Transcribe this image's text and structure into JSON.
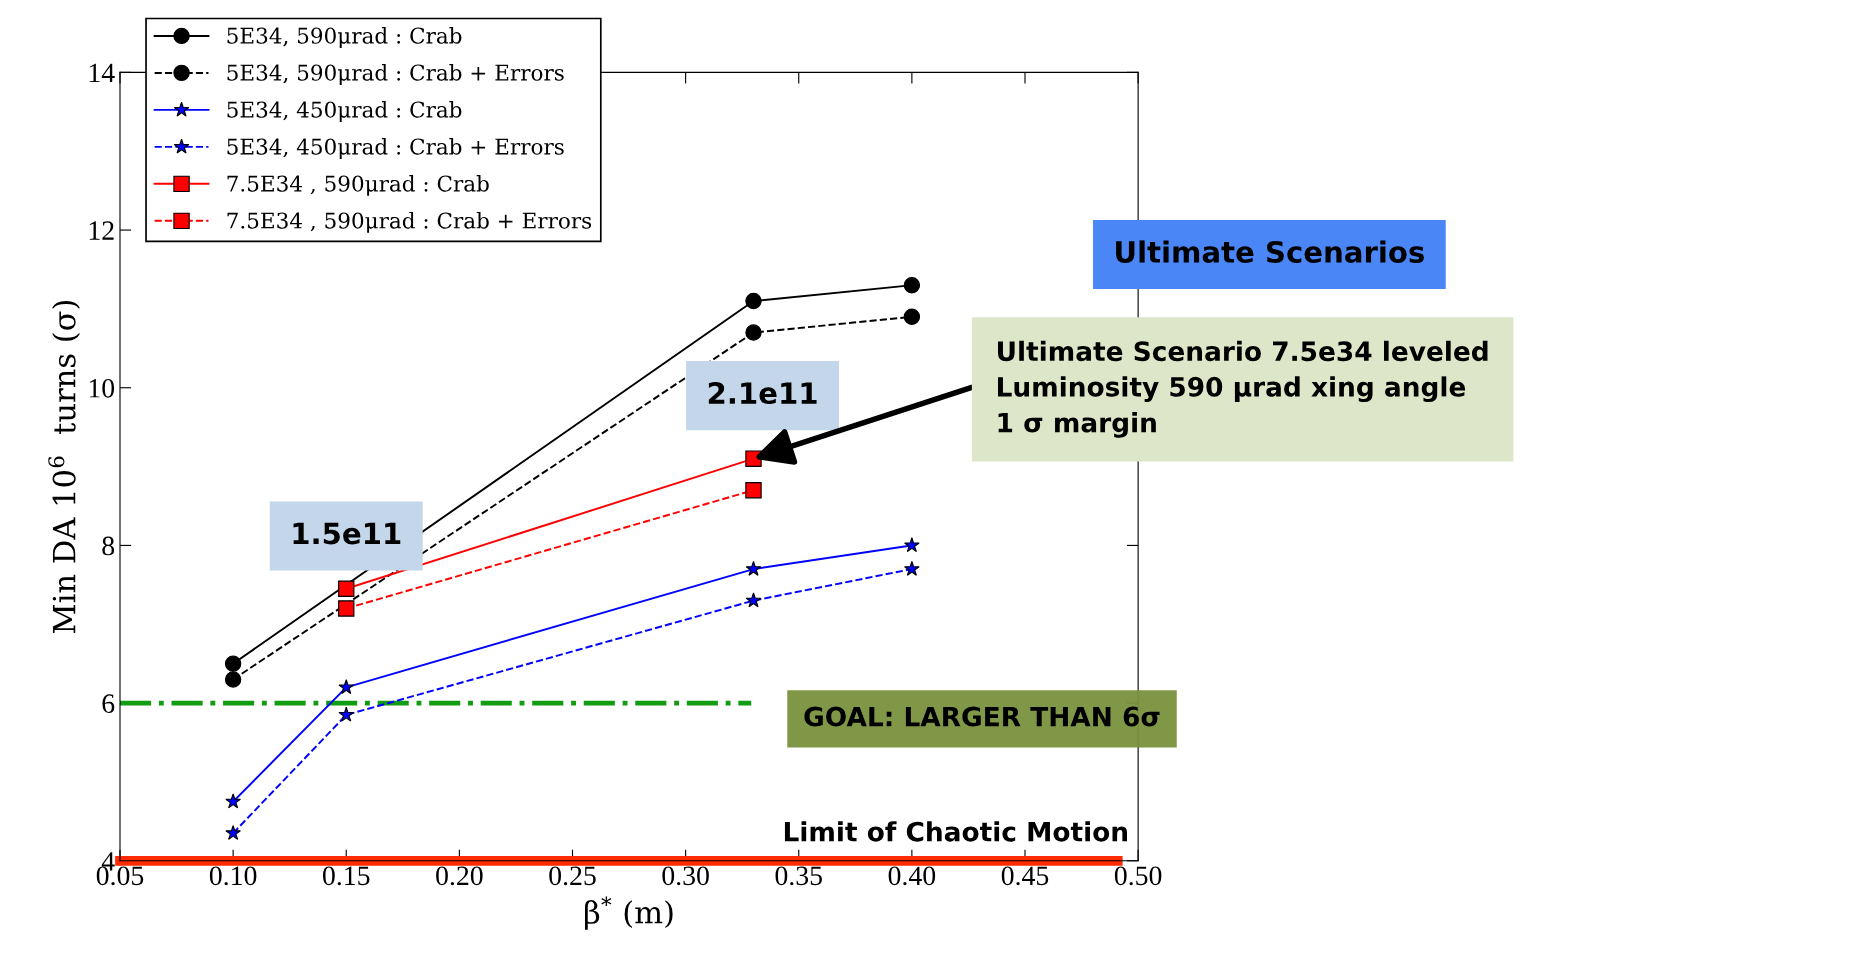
{
  "chart_data": {
    "type": "line",
    "xlabel": "β$^{*}$ (m)",
    "ylabel": "Min DA 10$^{6}$  turns (σ)",
    "xlim": [
      0.05,
      0.5
    ],
    "ylim": [
      4,
      14
    ],
    "xticks": [
      {
        "value": 0.05,
        "label": "0.05"
      },
      {
        "value": 0.1,
        "label": "0.10"
      },
      {
        "value": 0.15,
        "label": "0.15"
      },
      {
        "value": 0.2,
        "label": "0.20"
      },
      {
        "value": 0.25,
        "label": "0.25"
      },
      {
        "value": 0.3,
        "label": "0.30"
      },
      {
        "value": 0.35,
        "label": "0.35"
      },
      {
        "value": 0.4,
        "label": "0.40"
      },
      {
        "value": 0.45,
        "label": "0.45"
      },
      {
        "value": 0.5,
        "label": "0.50"
      }
    ],
    "yticks": [
      4,
      6,
      8,
      10,
      12,
      14
    ],
    "legend": "top left",
    "grid": false,
    "series": [
      {
        "name": "5E34, 590μrad : Crab",
        "color": "#000000",
        "marker": "circle",
        "line_style": "solid",
        "x": [
          0.1,
          0.15,
          0.33,
          0.4
        ],
        "values": [
          6.5,
          null,
          11.1,
          11.3
        ]
      },
      {
        "name": "5E34, 590μrad : Crab + Errors",
        "color": "#000000",
        "marker": "circle",
        "line_style": "dashed",
        "x": [
          0.1,
          0.15,
          0.33,
          0.4
        ],
        "values": [
          6.3,
          null,
          10.7,
          10.9
        ]
      },
      {
        "name": "5E34, 450μrad : Crab",
        "color": "#0000ff",
        "marker": "star",
        "line_style": "solid",
        "x": [
          0.1,
          0.15,
          0.33,
          0.4
        ],
        "values": [
          4.75,
          6.2,
          7.7,
          8.0
        ]
      },
      {
        "name": "5E34, 450μrad : Crab + Errors",
        "color": "#0000ff",
        "marker": "star",
        "line_style": "dashed",
        "x": [
          0.1,
          0.15,
          0.33,
          0.4
        ],
        "values": [
          4.35,
          5.85,
          7.3,
          7.7
        ]
      },
      {
        "name": "7.5E34 , 590μrad : Crab",
        "color": "#ff0000",
        "marker": "square",
        "line_style": "solid",
        "x": [
          0.15,
          0.33
        ],
        "values": [
          7.45,
          9.1
        ]
      },
      {
        "name": "7.5E34 , 590μrad : Crab + Errors",
        "color": "#ff0000",
        "marker": "square",
        "line_style": "dashed",
        "x": [
          0.15,
          0.33
        ],
        "values": [
          7.2,
          8.7
        ]
      }
    ],
    "ref_lines": [
      {
        "axis": "y",
        "value": 6,
        "label": "GOAL: LARGER THAN 6σ",
        "color": "#129c12",
        "line_style": "dashdot"
      },
      {
        "axis": "y",
        "value": 4,
        "label": "Limit of Chaotic Motion",
        "color": "#ff2a00",
        "line_style": "solid"
      }
    ],
    "annotations": [
      "Ultimate Scenarios",
      "1.5e11",
      "2.1e11",
      {
        "text": "Ultimate Scenario 7.5e34 leveled\nLuminosity 590 μrad xing angle\n1 σ margin",
        "x": 0.33,
        "y": 9.1
      }
    ]
  }
}
